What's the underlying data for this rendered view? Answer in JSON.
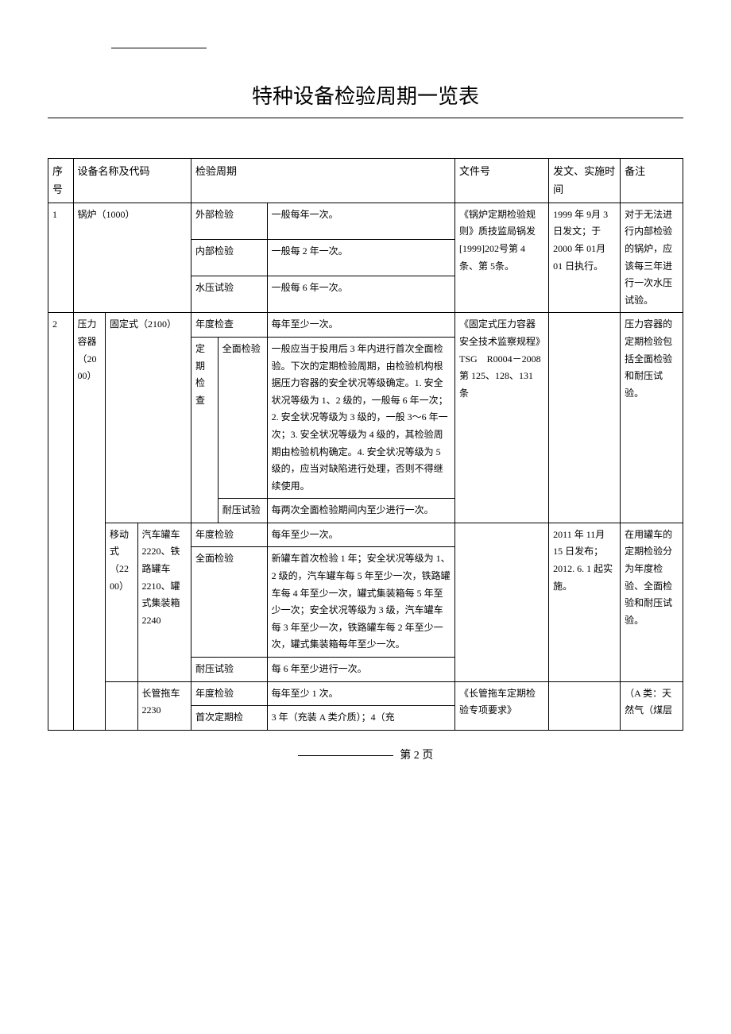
{
  "title": "特种设备检验周期一览表",
  "headers": {
    "seq": "序号",
    "name": "设备名称及代码",
    "period": "检验周期",
    "doc": "文件号",
    "date": "发文、实施时间",
    "note": "备注"
  },
  "rows": {
    "r1": {
      "seq": "1",
      "name": "锅炉（1000）",
      "p1_label": "外部检验",
      "p1_val": "一般每年一次。",
      "p2_label": "内部检验",
      "p2_val": "一般每 2 年一次。",
      "p3_label": "水压试验",
      "p3_val": "一般每 6 年一次。",
      "doc": "《锅炉定期检验规则》质技监局锅发[1999]202号第 4 条、第 5条。",
      "date": "1999 年 9月 3 日发文；于 2000 年 01月 01 日执行。",
      "note": "对于无法进行内部检验的锅炉，应该每三年进行一次水压试验。"
    },
    "r2": {
      "seq": "2",
      "name1": "压力容器（2000）",
      "name2a": "固定式（2100）",
      "p1_label": "年度检查",
      "p1_val": "每年至少一次。",
      "p2_label1": "定期检查",
      "p2_label2": "全面检验",
      "p2_val": "一般应当于投用后 3 年内进行首次全面检验。下次的定期检验周期，由检验机构根据压力容器的安全状况等级确定。1. 安全状况等级为 1、2 级的，一般每 6 年一次；2. 安全状况等级为 3 级的，一般 3～6 年一次；3. 安全状况等级为 4 级的，其检验周期由检验机构确定。4. 安全状况等级为 5 级的，应当对缺陷进行处理，否则不得继续使用。",
      "p3_label": "耐压试验",
      "p3_val": "每两次全面检验期间内至少进行一次。",
      "doc": "《固定式压力容器安全技术监察规程》TSG　R0004－2008 第 125、128、131 条",
      "note": "压力容器的定期检验包括全面检验和耐压试验。",
      "name2b": "移动式（2200）",
      "name3b": "汽车罐车 2220、铁路罐车 2210、罐式集装箱 2240",
      "p4_label": "年度检验",
      "p4_val": "每年至少一次。",
      "p5_label": "全面检验",
      "p5_val": "新罐车首次检验 1 年；安全状况等级为 1、2 级的，汽车罐车每 5 年至少一次，铁路罐车每 4 年至少一次，罐式集装箱每 5 年至少一次；安全状况等级为 3 级，汽车罐车每 3 年至少一次，铁路罐车每 2 年至少一次，罐式集装箱每年至少一次。",
      "p6_label": "耐压试验",
      "p6_val": "每 6 年至少进行一次。",
      "date2": "2011 年 11月 15 日发布；2012. 6. 1 起实施。",
      "note2": "在用罐车的定期检验分为年度检验、全面检验和耐压试验。",
      "name3c": "长管拖车 2230",
      "p7_label": "年度检验",
      "p7_val": "每年至少 1 次。",
      "p8_label": "首次定期检",
      "p8_val": "3 年（充装 A 类介质）；4（充",
      "doc3": "《长管拖车定期检验专项要求》",
      "note3": "（A 类：天然气（煤层"
    }
  },
  "footer": "第 2 页"
}
